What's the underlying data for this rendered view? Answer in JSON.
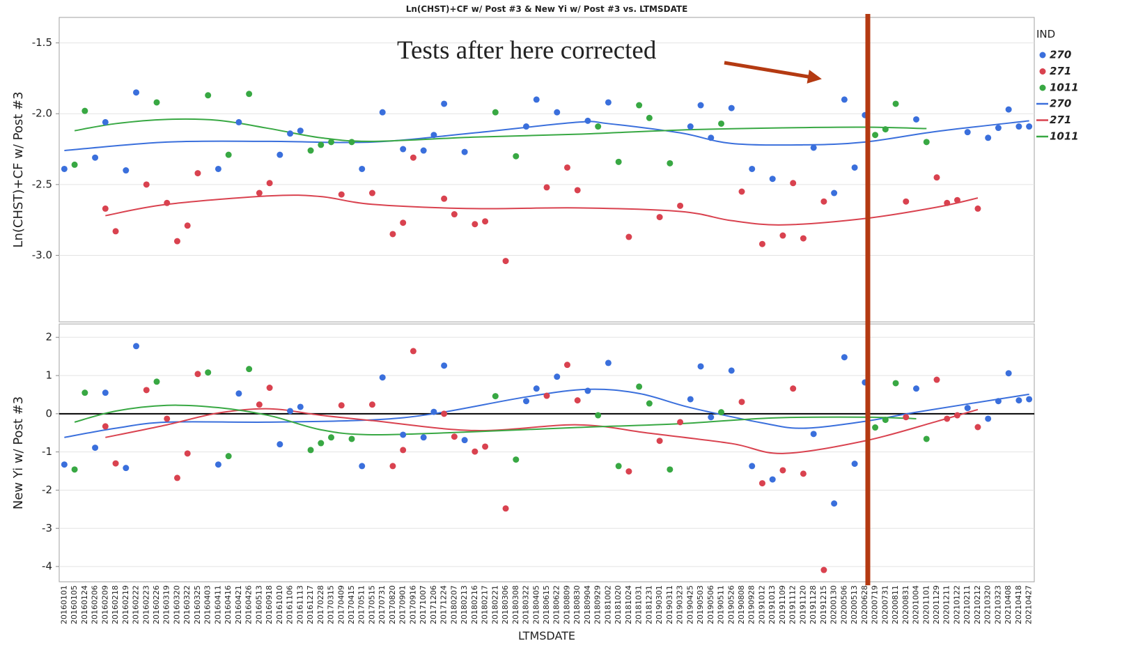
{
  "chart_data": {
    "type": "scatter",
    "title": "Ln(CHST)+CF w/ Post #3 & New Yi w/ Post #3 vs. LTMSDATE",
    "xlabel": "LTMSDATE",
    "legend_title": "IND",
    "legend_position": "right",
    "categories": [
      "20160101",
      "20160105",
      "20160124",
      "20160206",
      "20160209",
      "20160218",
      "20160219",
      "20160222",
      "20160223",
      "20160226",
      "20160319",
      "20160320",
      "20160322",
      "20160325",
      "20160403",
      "20160411",
      "20160416",
      "20160421",
      "20160426",
      "20160513",
      "20160918",
      "20161010",
      "20161106",
      "20161113",
      "20161217",
      "20170228",
      "20170315",
      "20170409",
      "20170415",
      "20170511",
      "20170515",
      "20170731",
      "20170820",
      "20170901",
      "20170916",
      "20171007",
      "20171206",
      "20171224",
      "20180207",
      "20180213",
      "20180216",
      "20180217",
      "20180221",
      "20180306",
      "20180308",
      "20180322",
      "20180405",
      "20180615",
      "20180622",
      "20180809",
      "20180830",
      "20180904",
      "20180929",
      "20181002",
      "20181020",
      "20181024",
      "20181031",
      "20181231",
      "20190301",
      "20190311",
      "20190323",
      "20190425",
      "20190503",
      "20190506",
      "20190511",
      "20190526",
      "20190808",
      "20190928",
      "20191012",
      "20191013",
      "20191109",
      "20191112",
      "20191120",
      "20191128",
      "20191215",
      "20200130",
      "20200506",
      "20200513",
      "20200628",
      "20200719",
      "20200731",
      "20200811",
      "20200831",
      "20201004",
      "20201101",
      "20201129",
      "20201211",
      "20210122",
      "20210211",
      "20210212",
      "20210320",
      "20210323",
      "20210408",
      "20210418",
      "20210427"
    ],
    "groups": [
      {
        "name": "270",
        "color": "#3a6fdc"
      },
      {
        "name": "271",
        "color": "#d9424f"
      },
      {
        "name": "1011",
        "color": "#38a843"
      }
    ],
    "panels": [
      {
        "ylabel": "Ln(CHST)+CF w/ Post #3",
        "ylim": [
          -3.47,
          -1.32
        ],
        "grid": true,
        "yticks": [
          {
            "value": -3,
            "label": "-3.0"
          },
          {
            "value": -2.5,
            "label": "-2.5"
          },
          {
            "value": -2,
            "label": "-2.0"
          },
          {
            "value": -1.5,
            "label": "-1.5"
          }
        ],
        "values": [
          [
            -2.39,
            null,
            null,
            -2.31,
            -2.06,
            null,
            -2.4,
            -1.85,
            null,
            null,
            null,
            null,
            null,
            null,
            null,
            -2.39,
            null,
            -2.06,
            null,
            null,
            null,
            -2.29,
            -2.14,
            -2.12,
            null,
            null,
            null,
            null,
            null,
            -2.39,
            null,
            -1.99,
            null,
            -2.25,
            null,
            -2.26,
            -2.15,
            -1.93,
            null,
            -2.27,
            null,
            null,
            null,
            null,
            null,
            -2.09,
            -1.9,
            null,
            -1.99,
            null,
            null,
            -2.05,
            null,
            -1.92,
            null,
            null,
            null,
            null,
            null,
            null,
            null,
            -2.09,
            -1.94,
            -2.17,
            null,
            -1.96,
            null,
            -2.39,
            null,
            -2.46,
            null,
            null,
            null,
            -2.24,
            null,
            -2.56,
            -1.9,
            -2.38,
            -2.01,
            null,
            null,
            null,
            null,
            -2.04,
            null,
            null,
            null,
            null,
            -2.13,
            null,
            -2.17,
            -2.1,
            -1.97,
            -2.09,
            -2.09
          ],
          [
            null,
            null,
            null,
            null,
            -2.67,
            -2.83,
            null,
            null,
            -2.5,
            null,
            -2.63,
            -2.9,
            -2.79,
            -2.42,
            null,
            null,
            null,
            null,
            null,
            -2.56,
            -2.49,
            null,
            null,
            null,
            null,
            null,
            null,
            -2.57,
            null,
            null,
            -2.56,
            null,
            -2.85,
            -2.77,
            -2.31,
            null,
            null,
            -2.6,
            -2.71,
            null,
            -2.78,
            -2.76,
            null,
            -3.04,
            null,
            null,
            null,
            -2.52,
            null,
            -2.38,
            -2.54,
            null,
            null,
            null,
            null,
            -2.87,
            null,
            null,
            -2.73,
            null,
            -2.65,
            null,
            null,
            null,
            null,
            null,
            -2.55,
            null,
            -2.92,
            null,
            -2.86,
            -2.49,
            -2.88,
            null,
            -2.62,
            null,
            null,
            null,
            null,
            null,
            null,
            null,
            -2.62,
            null,
            null,
            -2.45,
            -2.63,
            -2.61,
            null,
            -2.67,
            null,
            null,
            null,
            null,
            null
          ],
          [
            null,
            -2.36,
            -1.98,
            null,
            null,
            null,
            null,
            null,
            null,
            -1.92,
            null,
            null,
            null,
            null,
            -1.87,
            null,
            -2.29,
            null,
            -1.86,
            null,
            null,
            null,
            null,
            null,
            -2.26,
            -2.22,
            -2.2,
            null,
            -2.2,
            null,
            null,
            null,
            null,
            null,
            null,
            null,
            null,
            null,
            null,
            null,
            null,
            null,
            -1.99,
            null,
            -2.3,
            null,
            null,
            null,
            null,
            null,
            null,
            null,
            -2.09,
            null,
            -2.34,
            null,
            -1.94,
            -2.03,
            null,
            -2.35,
            null,
            null,
            null,
            null,
            -2.07,
            null,
            null,
            null,
            null,
            null,
            null,
            null,
            null,
            null,
            null,
            null,
            null,
            null,
            null,
            -2.15,
            -2.11,
            -1.93,
            null,
            null,
            -2.2,
            null,
            null,
            null,
            null,
            null,
            null,
            null,
            null,
            null,
            null
          ]
        ],
        "fits": [
          {
            "x": [
              "20160101",
              "20160319",
              "20160918",
              "20170515",
              "20180216",
              "20180830",
              "20181002",
              "20190323",
              "20190526",
              "20191120",
              "20200628",
              "20201129",
              "20210427"
            ],
            "values": [
              -2.26,
              -2.2,
              -2.195,
              -2.2,
              -2.135,
              -2.06,
              -2.07,
              -2.135,
              -2.21,
              -2.22,
              -2.2,
              -2.125,
              -2.05
            ]
          },
          {
            "x": [
              "20160209",
              "20160319",
              "20160918",
              "20170228",
              "20170515",
              "20180216",
              "20180830",
              "20190323",
              "20190526",
              "20191109",
              "20200628",
              "20201129",
              "20210212"
            ],
            "values": [
              -2.72,
              -2.64,
              -2.58,
              -2.585,
              -2.64,
              -2.67,
              -2.665,
              -2.69,
              -2.755,
              -2.785,
              -2.74,
              -2.66,
              -2.595
            ]
          },
          {
            "x": [
              "20160105",
              "20160218",
              "20160319",
              "20160411",
              "20160918",
              "20170228",
              "20170515",
              "20180216",
              "20180830",
              "20190323",
              "20191109",
              "20200628",
              "20201101"
            ],
            "values": [
              -2.12,
              -2.07,
              -2.04,
              -2.047,
              -2.105,
              -2.17,
              -2.195,
              -2.165,
              -2.145,
              -2.115,
              -2.1,
              -2.095,
              -2.105
            ]
          }
        ]
      },
      {
        "ylabel": "New Yi w/ Post #3",
        "ylim": [
          -4.4,
          2.35
        ],
        "grid": true,
        "reference_line": 0,
        "yticks": [
          -4,
          -3,
          -2,
          -1,
          0,
          1,
          2
        ],
        "values": [
          [
            -1.33,
            null,
            null,
            -0.89,
            0.55,
            null,
            -1.42,
            1.77,
            null,
            null,
            null,
            null,
            null,
            null,
            null,
            -1.33,
            null,
            0.53,
            null,
            null,
            null,
            -0.8,
            0.07,
            0.18,
            null,
            null,
            null,
            null,
            null,
            -1.37,
            null,
            0.95,
            null,
            -0.55,
            null,
            -0.62,
            0.05,
            1.26,
            null,
            -0.69,
            null,
            null,
            null,
            null,
            null,
            0.33,
            0.66,
            null,
            0.97,
            null,
            null,
            0.6,
            null,
            1.33,
            null,
            null,
            null,
            null,
            null,
            null,
            null,
            0.38,
            1.24,
            -0.09,
            null,
            1.13,
            null,
            -1.37,
            null,
            -1.72,
            null,
            null,
            null,
            -0.53,
            null,
            -2.35,
            1.48,
            -1.31,
            0.82,
            null,
            null,
            null,
            null,
            0.66,
            null,
            null,
            null,
            null,
            0.15,
            null,
            -0.13,
            0.33,
            1.06,
            0.35,
            0.38
          ],
          [
            null,
            null,
            null,
            null,
            -0.33,
            -1.3,
            null,
            null,
            0.62,
            null,
            -0.13,
            -1.68,
            -1.04,
            1.04,
            null,
            null,
            null,
            null,
            null,
            0.24,
            0.68,
            null,
            null,
            null,
            null,
            null,
            null,
            0.22,
            null,
            null,
            0.24,
            null,
            -1.37,
            -0.95,
            1.64,
            null,
            null,
            0,
            -0.6,
            null,
            -0.99,
            -0.86,
            null,
            -2.48,
            null,
            null,
            null,
            0.47,
            null,
            1.28,
            0.35,
            null,
            null,
            null,
            null,
            -1.51,
            null,
            null,
            -0.71,
            null,
            -0.22,
            null,
            null,
            null,
            null,
            null,
            0.31,
            null,
            -1.82,
            null,
            -1.48,
            0.66,
            -1.57,
            null,
            -4.09,
            null,
            null,
            null,
            null,
            null,
            null,
            null,
            -0.09,
            null,
            null,
            0.89,
            -0.13,
            -0.04,
            null,
            -0.35,
            null,
            null,
            null,
            null,
            null
          ],
          [
            null,
            -1.46,
            0.55,
            null,
            null,
            null,
            null,
            null,
            null,
            0.84,
            null,
            null,
            null,
            null,
            1.08,
            null,
            -1.11,
            null,
            1.17,
            null,
            null,
            null,
            null,
            null,
            -0.95,
            -0.77,
            -0.62,
            null,
            -0.66,
            null,
            null,
            null,
            null,
            null,
            null,
            null,
            null,
            null,
            null,
            null,
            null,
            null,
            0.46,
            null,
            -1.2,
            null,
            null,
            null,
            null,
            null,
            null,
            null,
            -0.04,
            null,
            -1.37,
            null,
            0.71,
            0.27,
            null,
            -1.46,
            null,
            null,
            null,
            null,
            0.04,
            null,
            null,
            null,
            null,
            null,
            null,
            null,
            null,
            null,
            null,
            null,
            null,
            null,
            null,
            -0.36,
            -0.16,
            0.8,
            null,
            null,
            -0.66,
            null,
            null,
            null,
            null,
            null,
            null,
            null,
            null,
            null,
            null
          ]
        ],
        "fits": [
          {
            "x": [
              "20160101",
              "20160218",
              "20160319",
              "20160918",
              "20170515",
              "20171206",
              "20180322",
              "20180904",
              "20181031",
              "20190425",
              "20191012",
              "20191120",
              "20200628",
              "20201004",
              "20210427"
            ],
            "values": [
              -0.62,
              -0.38,
              -0.22,
              -0.22,
              -0.16,
              0,
              0.44,
              0.64,
              0.53,
              0.16,
              -0.24,
              -0.38,
              -0.2,
              0.04,
              0.51
            ]
          },
          {
            "x": [
              "20160209",
              "20160319",
              "20160411",
              "20160918",
              "20170228",
              "20170515",
              "20180216",
              "20180830",
              "20181231",
              "20190526",
              "20191109",
              "20200628",
              "20201129",
              "20210212"
            ],
            "values": [
              -0.62,
              -0.29,
              0.02,
              0.13,
              -0.04,
              -0.18,
              -0.44,
              -0.29,
              -0.51,
              -0.78,
              -1.04,
              -0.71,
              -0.2,
              0.11
            ]
          },
          {
            "x": [
              "20160105",
              "20160218",
              "20160319",
              "20160411",
              "20160918",
              "20170228",
              "20170515",
              "20180216",
              "20180830",
              "20190323",
              "20191013",
              "20200628",
              "20201004"
            ],
            "values": [
              -0.22,
              0.07,
              0.22,
              0.16,
              -0.05,
              -0.42,
              -0.55,
              -0.47,
              -0.36,
              -0.26,
              -0.11,
              -0.09,
              -0.13
            ]
          }
        ]
      }
    ]
  },
  "annotation": {
    "text": "Tests after here corrected"
  }
}
